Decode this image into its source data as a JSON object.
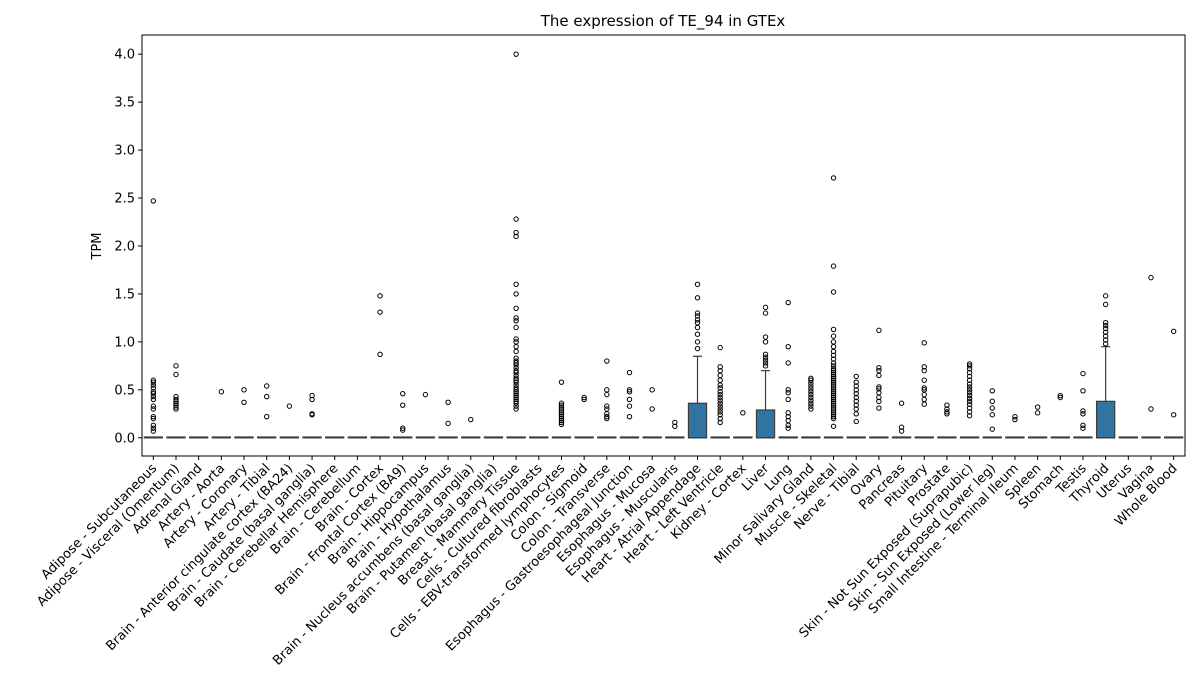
{
  "chart_data": {
    "type": "box",
    "title": "The expression of TE_94 in GTEx",
    "xlabel": "",
    "ylabel": "TPM",
    "ylim": [
      -0.19,
      4.2
    ],
    "yticks": [
      "0.0",
      "0.5",
      "1.0",
      "1.5",
      "2.0",
      "2.5",
      "3.0",
      "3.5",
      "4.0"
    ],
    "grid": false,
    "legend": "none",
    "box_color": "#3274a1",
    "median_color": "#3c3c3c",
    "categories": [
      "Adipose - Subcutaneous",
      "Adipose - Visceral (Omentum)",
      "Adrenal Gland",
      "Artery - Aorta",
      "Artery - Coronary",
      "Artery - Tibial",
      "Brain - Anterior cingulate cortex (BA24)",
      "Brain - Caudate (basal ganglia)",
      "Brain - Cerebellar Hemisphere",
      "Brain - Cerebellum",
      "Brain - Cortex",
      "Brain - Frontal Cortex (BA9)",
      "Brain - Hippocampus",
      "Brain - Hypothalamus",
      "Brain - Nucleus accumbens (basal ganglia)",
      "Brain - Putamen (basal ganglia)",
      "Breast - Mammary Tissue",
      "Cells - Cultured fibroblasts",
      "Cells - EBV-transformed lymphocytes",
      "Colon - Sigmoid",
      "Colon - Transverse",
      "Esophagus - Gastroesophageal Junction",
      "Esophagus - Mucosa",
      "Esophagus - Muscularis",
      "Heart - Atrial Appendage",
      "Heart - Left Ventricle",
      "Kidney - Cortex",
      "Liver",
      "Lung",
      "Minor Salivary Gland",
      "Muscle - Skeletal",
      "Nerve - Tibial",
      "Ovary",
      "Pancreas",
      "Pituitary",
      "Prostate",
      "Skin - Not Sun Exposed (Suprapubic)",
      "Skin - Sun Exposed (Lower leg)",
      "Small Intestine - Terminal Ileum",
      "Spleen",
      "Stomach",
      "Testis",
      "Thyroid",
      "Uterus",
      "Vagina",
      "Whole Blood"
    ],
    "boxes": [
      {
        "q1": 0,
        "median": 0,
        "q3": 0,
        "whislo": 0,
        "whishi": 0,
        "fliers": [
          0.07,
          0.1,
          0.13,
          0.2,
          0.22,
          0.3,
          0.33,
          0.4,
          0.43,
          0.46,
          0.48,
          0.52,
          0.55,
          0.58,
          0.6,
          2.47
        ]
      },
      {
        "q1": 0,
        "median": 0,
        "q3": 0,
        "whislo": 0,
        "whishi": 0,
        "fliers": [
          0.3,
          0.32,
          0.34,
          0.36,
          0.38,
          0.4,
          0.43,
          0.66,
          0.75
        ]
      },
      {
        "q1": 0,
        "median": 0,
        "q3": 0,
        "whislo": 0,
        "whishi": 0,
        "fliers": []
      },
      {
        "q1": 0,
        "median": 0,
        "q3": 0,
        "whislo": 0,
        "whishi": 0,
        "fliers": [
          0.48
        ]
      },
      {
        "q1": 0,
        "median": 0,
        "q3": 0,
        "whislo": 0,
        "whishi": 0,
        "fliers": [
          0.37,
          0.5
        ]
      },
      {
        "q1": 0,
        "median": 0,
        "q3": 0,
        "whislo": 0,
        "whishi": 0,
        "fliers": [
          0.22,
          0.43,
          0.54
        ]
      },
      {
        "q1": 0,
        "median": 0,
        "q3": 0,
        "whislo": 0,
        "whishi": 0,
        "fliers": [
          0.33
        ]
      },
      {
        "q1": 0,
        "median": 0,
        "q3": 0,
        "whislo": 0,
        "whishi": 0,
        "fliers": [
          0.24,
          0.25,
          0.4,
          0.44
        ]
      },
      {
        "q1": 0,
        "median": 0,
        "q3": 0,
        "whislo": 0,
        "whishi": 0,
        "fliers": []
      },
      {
        "q1": 0,
        "median": 0,
        "q3": 0,
        "whislo": 0,
        "whishi": 0,
        "fliers": []
      },
      {
        "q1": 0,
        "median": 0,
        "q3": 0,
        "whislo": 0,
        "whishi": 0,
        "fliers": [
          0.87,
          1.31,
          1.48
        ]
      },
      {
        "q1": 0,
        "median": 0,
        "q3": 0,
        "whislo": 0,
        "whishi": 0,
        "fliers": [
          0.08,
          0.1,
          0.34,
          0.46
        ]
      },
      {
        "q1": 0,
        "median": 0,
        "q3": 0,
        "whislo": 0,
        "whishi": 0,
        "fliers": [
          0.45
        ]
      },
      {
        "q1": 0,
        "median": 0,
        "q3": 0,
        "whislo": 0,
        "whishi": 0,
        "fliers": [
          0.15,
          0.37
        ]
      },
      {
        "q1": 0,
        "median": 0,
        "q3": 0,
        "whislo": 0,
        "whishi": 0,
        "fliers": [
          0.19
        ]
      },
      {
        "q1": 0,
        "median": 0,
        "q3": 0,
        "whislo": 0,
        "whishi": 0,
        "fliers": []
      },
      {
        "q1": 0,
        "median": 0,
        "q3": 0,
        "whislo": 0,
        "whishi": 0,
        "fliers": [
          0.3,
          0.33,
          0.36,
          0.38,
          0.4,
          0.42,
          0.44,
          0.46,
          0.48,
          0.5,
          0.52,
          0.55,
          0.58,
          0.6,
          0.62,
          0.65,
          0.68,
          0.7,
          0.73,
          0.76,
          0.78,
          0.8,
          0.83,
          0.9,
          0.95,
          1.0,
          1.03,
          1.15,
          1.22,
          1.25,
          1.35,
          1.5,
          1.6,
          2.1,
          2.14,
          2.28,
          4.0
        ]
      },
      {
        "q1": 0,
        "median": 0,
        "q3": 0,
        "whislo": 0,
        "whishi": 0,
        "fliers": []
      },
      {
        "q1": 0,
        "median": 0,
        "q3": 0,
        "whislo": 0,
        "whishi": 0,
        "fliers": [
          0.14,
          0.16,
          0.18,
          0.2,
          0.22,
          0.24,
          0.26,
          0.28,
          0.3,
          0.32,
          0.34,
          0.36,
          0.58
        ]
      },
      {
        "q1": 0,
        "median": 0,
        "q3": 0,
        "whislo": 0,
        "whishi": 0,
        "fliers": [
          0.4,
          0.42
        ]
      },
      {
        "q1": 0,
        "median": 0,
        "q3": 0,
        "whislo": 0,
        "whishi": 0,
        "fliers": [
          0.2,
          0.22,
          0.25,
          0.3,
          0.33,
          0.45,
          0.5,
          0.8
        ]
      },
      {
        "q1": 0,
        "median": 0,
        "q3": 0,
        "whislo": 0,
        "whishi": 0,
        "fliers": [
          0.22,
          0.33,
          0.4,
          0.48,
          0.5,
          0.68
        ]
      },
      {
        "q1": 0,
        "median": 0,
        "q3": 0,
        "whislo": 0,
        "whishi": 0,
        "fliers": [
          0.3,
          0.5
        ]
      },
      {
        "q1": 0,
        "median": 0,
        "q3": 0,
        "whislo": 0,
        "whishi": 0,
        "fliers": [
          0.12,
          0.16
        ]
      },
      {
        "q1": 0,
        "median": 0,
        "q3": 0.36,
        "whislo": 0,
        "whishi": 0.85,
        "fliers": [
          0.93,
          1.0,
          1.08,
          1.15,
          1.2,
          1.23,
          1.27,
          1.3,
          1.46,
          1.6
        ]
      },
      {
        "q1": 0,
        "median": 0,
        "q3": 0,
        "whislo": 0,
        "whishi": 0,
        "fliers": [
          0.16,
          0.2,
          0.24,
          0.27,
          0.3,
          0.33,
          0.36,
          0.39,
          0.42,
          0.45,
          0.48,
          0.52,
          0.55,
          0.6,
          0.65,
          0.7,
          0.74,
          0.94
        ]
      },
      {
        "q1": 0,
        "median": 0,
        "q3": 0,
        "whislo": 0,
        "whishi": 0,
        "fliers": [
          0.26
        ]
      },
      {
        "q1": 0,
        "median": 0,
        "q3": 0.29,
        "whislo": 0,
        "whishi": 0.7,
        "fliers": [
          0.75,
          0.78,
          0.81,
          0.84,
          0.87,
          1.0,
          1.05,
          1.3,
          1.36
        ]
      },
      {
        "q1": 0,
        "median": 0,
        "q3": 0,
        "whislo": 0,
        "whishi": 0,
        "fliers": [
          0.1,
          0.13,
          0.18,
          0.22,
          0.26,
          0.4,
          0.47,
          0.5,
          0.78,
          0.95,
          1.41
        ]
      },
      {
        "q1": 0,
        "median": 0,
        "q3": 0,
        "whislo": 0,
        "whishi": 0,
        "fliers": [
          0.3,
          0.33,
          0.36,
          0.39,
          0.42,
          0.45,
          0.48,
          0.51,
          0.54,
          0.57,
          0.6,
          0.62
        ]
      },
      {
        "q1": 0,
        "median": 0,
        "q3": 0,
        "whislo": 0,
        "whishi": 0,
        "fliers": [
          0.12,
          0.2,
          0.22,
          0.24,
          0.26,
          0.28,
          0.3,
          0.32,
          0.34,
          0.36,
          0.38,
          0.4,
          0.42,
          0.44,
          0.46,
          0.48,
          0.5,
          0.52,
          0.54,
          0.56,
          0.58,
          0.6,
          0.62,
          0.64,
          0.66,
          0.68,
          0.7,
          0.72,
          0.75,
          0.78,
          0.82,
          0.86,
          0.9,
          0.95,
          1.0,
          1.06,
          1.13,
          1.52,
          1.79,
          2.71
        ]
      },
      {
        "q1": 0,
        "median": 0,
        "q3": 0,
        "whislo": 0,
        "whishi": 0,
        "fliers": [
          0.17,
          0.25,
          0.3,
          0.34,
          0.38,
          0.42,
          0.46,
          0.5,
          0.54,
          0.58,
          0.64
        ]
      },
      {
        "q1": 0,
        "median": 0,
        "q3": 0,
        "whislo": 0,
        "whishi": 0,
        "fliers": [
          0.31,
          0.38,
          0.42,
          0.47,
          0.51,
          0.53,
          0.65,
          0.7,
          0.73,
          1.12
        ]
      },
      {
        "q1": 0,
        "median": 0,
        "q3": 0,
        "whislo": 0,
        "whishi": 0,
        "fliers": [
          0.07,
          0.11,
          0.36
        ]
      },
      {
        "q1": 0,
        "median": 0,
        "q3": 0,
        "whislo": 0,
        "whishi": 0,
        "fliers": [
          0.35,
          0.4,
          0.45,
          0.5,
          0.52,
          0.6,
          0.7,
          0.74,
          0.99
        ]
      },
      {
        "q1": 0,
        "median": 0,
        "q3": 0,
        "whislo": 0,
        "whishi": 0,
        "fliers": [
          0.25,
          0.27,
          0.3,
          0.34
        ]
      },
      {
        "q1": 0,
        "median": 0,
        "q3": 0,
        "whislo": 0,
        "whishi": 0,
        "fliers": [
          0.23,
          0.27,
          0.31,
          0.35,
          0.38,
          0.41,
          0.44,
          0.47,
          0.5,
          0.53,
          0.56,
          0.6,
          0.64,
          0.68,
          0.72,
          0.75,
          0.77
        ]
      },
      {
        "q1": 0,
        "median": 0,
        "q3": 0,
        "whislo": 0,
        "whishi": 0,
        "fliers": [
          0.09,
          0.24,
          0.31,
          0.38,
          0.49
        ]
      },
      {
        "q1": 0,
        "median": 0,
        "q3": 0,
        "whislo": 0,
        "whishi": 0,
        "fliers": [
          0.19,
          0.22
        ]
      },
      {
        "q1": 0,
        "median": 0,
        "q3": 0,
        "whislo": 0,
        "whishi": 0,
        "fliers": [
          0.26,
          0.32
        ]
      },
      {
        "q1": 0,
        "median": 0,
        "q3": 0,
        "whislo": 0,
        "whishi": 0,
        "fliers": [
          0.42,
          0.44
        ]
      },
      {
        "q1": 0,
        "median": 0,
        "q3": 0,
        "whislo": 0,
        "whishi": 0,
        "fliers": [
          0.1,
          0.13,
          0.25,
          0.28,
          0.49,
          0.67
        ]
      },
      {
        "q1": 0,
        "median": 0,
        "q3": 0.38,
        "whislo": 0,
        "whishi": 0.95,
        "fliers": [
          0.98,
          1.02,
          1.06,
          1.1,
          1.14,
          1.17,
          1.2,
          1.39,
          1.48
        ]
      },
      {
        "q1": 0,
        "median": 0,
        "q3": 0,
        "whislo": 0,
        "whishi": 0,
        "fliers": []
      },
      {
        "q1": 0,
        "median": 0,
        "q3": 0,
        "whislo": 0,
        "whishi": 0,
        "fliers": [
          0.3,
          1.67
        ]
      },
      {
        "q1": 0,
        "median": 0,
        "q3": 0,
        "whislo": 0,
        "whishi": 0,
        "fliers": [
          0.24,
          1.11
        ]
      }
    ]
  }
}
